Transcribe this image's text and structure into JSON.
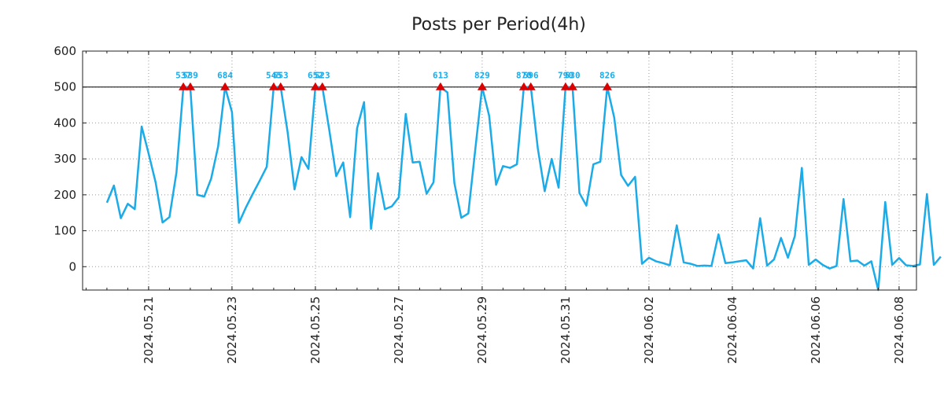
{
  "chart_data": {
    "type": "line",
    "title": "Posts per Period(4h)",
    "xlabel": "",
    "ylabel": "",
    "ylim": [
      -65,
      600
    ],
    "yticks": [
      0,
      100,
      200,
      300,
      400,
      500,
      600
    ],
    "reference_line": 500,
    "grid": true,
    "x_start": "2024.05.20 00:00",
    "x_step_hours": 4,
    "x_range_periods": [
      -3.5,
      116.5
    ],
    "x_ticks": [
      {
        "label": "2024.05.21",
        "period": 6
      },
      {
        "label": "2024.05.23",
        "period": 18
      },
      {
        "label": "2024.05.25",
        "period": 30
      },
      {
        "label": "2024.05.27",
        "period": 42
      },
      {
        "label": "2024.05.29",
        "period": 54
      },
      {
        "label": "2024.05.31",
        "period": 66
      },
      {
        "label": "2024.06.02",
        "period": 78
      },
      {
        "label": "2024.06.04",
        "period": 90
      },
      {
        "label": "2024.06.06",
        "period": 102
      },
      {
        "label": "2024.06.08",
        "period": 114
      }
    ],
    "series": [
      {
        "name": "Posts",
        "color": "#1aabe8",
        "values": [
          178,
          226,
          135,
          175,
          160,
          390,
          315,
          235,
          123,
          138,
          262,
          537,
          539,
          200,
          195,
          245,
          335,
          684,
          430,
          122,
          165,
          203,
          240,
          278,
          545,
          553,
          375,
          215,
          305,
          272,
          652,
          523,
          380,
          252,
          290,
          138,
          385,
          458,
          105,
          260,
          160,
          168,
          193,
          425,
          290,
          292,
          203,
          235,
          613,
          485,
          233,
          136,
          148,
          325,
          829,
          420,
          228,
          280,
          275,
          285,
          870,
          596,
          330,
          210,
          300,
          220,
          790,
          530,
          205,
          170,
          285,
          292,
          826,
          415,
          255,
          225,
          250,
          8,
          25,
          15,
          10,
          4,
          115,
          12,
          8,
          2,
          3,
          2,
          90,
          10,
          12,
          15,
          18,
          -5,
          135,
          3,
          20,
          80,
          25,
          85,
          275,
          5,
          20,
          5,
          -5,
          2,
          188,
          15,
          17,
          3,
          15,
          -65,
          180,
          5,
          24,
          4,
          2,
          6,
          202,
          5,
          28
        ]
      }
    ],
    "peaks": [
      {
        "label": "537",
        "period": 11
      },
      {
        "label": "539",
        "period": 12
      },
      {
        "label": "684",
        "period": 17
      },
      {
        "label": "545",
        "period": 24
      },
      {
        "label": "553",
        "period": 25
      },
      {
        "label": "652",
        "period": 30
      },
      {
        "label": "523",
        "period": 31
      },
      {
        "label": "613",
        "period": 48
      },
      {
        "label": "829",
        "period": 54
      },
      {
        "label": "870",
        "period": 60
      },
      {
        "label": "596",
        "period": 61
      },
      {
        "label": "790",
        "period": 66
      },
      {
        "label": "530",
        "period": 67
      },
      {
        "label": "826",
        "period": 72
      }
    ],
    "peak_marker_color": "#dd0000",
    "peak_label_color": "#1aabe8"
  }
}
